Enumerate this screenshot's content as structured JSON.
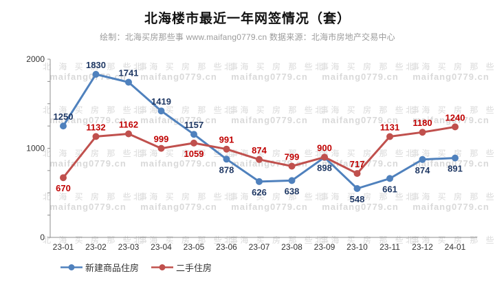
{
  "title": "北海楼市最近一年网签情况（套）",
  "subtitle": "绘制：北海买房那些事 www.maifang0779.cn 数据来源：北海市房地产交易中心",
  "watermark": {
    "line1": "北 海 买 房 那 些 事",
    "line2": "maifang0779.cn",
    "color": "#d9d9d9"
  },
  "colors": {
    "axis": "#8c8c8c",
    "axis_text": "#333333",
    "background": "#ffffff",
    "series1": "#4F81BD",
    "series1_label": "#1F3864",
    "series2": "#C0504D",
    "series2_label": "#C00000"
  },
  "chart_data": {
    "type": "line",
    "title": "北海楼市最近一年网签情况（套）",
    "categories": [
      "23-01",
      "23-02",
      "23-03",
      "23-04",
      "23-05",
      "23-06",
      "23-07",
      "23-08",
      "23-09",
      "23-10",
      "23-11",
      "23-12",
      "24-01"
    ],
    "series": [
      {
        "name": "新建商品住房",
        "color": "#4F81BD",
        "label_color": "#1F3864",
        "values": [
          1250,
          1830,
          1741,
          1419,
          1157,
          878,
          626,
          638,
          898,
          548,
          661,
          874,
          891
        ],
        "label_side": [
          "above",
          "above",
          "above",
          "above",
          "above",
          "below",
          "below",
          "below",
          "below",
          "below",
          "below",
          "below",
          "below"
        ]
      },
      {
        "name": "二手住房",
        "color": "#C0504D",
        "label_color": "#C00000",
        "values": [
          670,
          1132,
          1162,
          999,
          1059,
          991,
          874,
          799,
          900,
          717,
          1131,
          1180,
          1240
        ],
        "label_side": [
          "below",
          "above",
          "above",
          "above",
          "below",
          "above",
          "above",
          "above",
          "above",
          "above",
          "above",
          "above",
          "above"
        ]
      }
    ],
    "xlabel": "",
    "ylabel": "",
    "ylim": [
      0,
      2000
    ],
    "yticks": [
      0,
      1000,
      2000
    ],
    "minor_tick_step": 250,
    "grid": false,
    "legend_position": "bottom",
    "marker": "circle"
  }
}
